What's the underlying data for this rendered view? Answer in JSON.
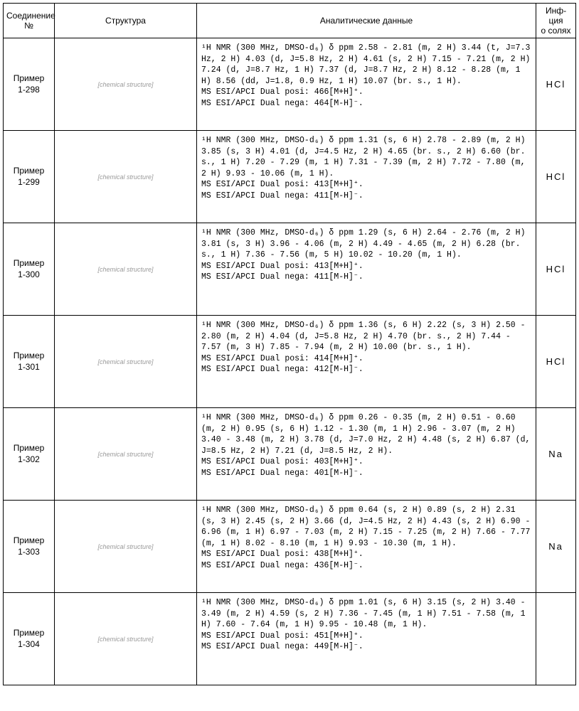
{
  "columns": {
    "compound": "Соединение\n№",
    "structure": "Структура",
    "analytical": "Аналитические данные",
    "salt": "Инф-ция\nо солях"
  },
  "rows": [
    {
      "compound": "Пример\n1-298",
      "structure_placeholder": "[chemical structure]",
      "analytical": "¹H NMR (300 MHz, DMSO-d₆) δ ppm 2.58 - 2.81 (m, 2 H) 3.44 (t, J=7.3 Hz, 2 H) 4.03 (d, J=5.8 Hz, 2 H) 4.61 (s, 2 H) 7.15 - 7.21 (m, 2 H) 7.24 (d, J=8.7 Hz, 1 H) 7.37 (d, J=8.7 Hz, 2 H) 8.12 - 8.28 (m, 1 H) 8.56 (dd, J=1.8, 0.9 Hz, 1 H) 10.07 (br. s., 1 H).\nMS ESI/APCI Dual posi: 466[M+H]⁺.\nMS ESI/APCI Dual nega: 464[M-H]⁻.",
      "salt": "HCl"
    },
    {
      "compound": "Пример\n1-299",
      "structure_placeholder": "[chemical structure]",
      "analytical": "¹H NMR (300 MHz, DMSO-d₆) δ ppm 1.31 (s, 6 H) 2.78 - 2.89 (m, 2 H) 3.85 (s, 3 H) 4.01 (d, J=4.5 Hz, 2 H) 4.65 (br. s., 2 H) 6.60 (br. s., 1 H) 7.20 - 7.29 (m, 1 H) 7.31 - 7.39 (m, 2 H) 7.72 - 7.80 (m, 2 H) 9.93 - 10.06 (m, 1 H).\nMS ESI/APCI Dual posi: 413[M+H]⁺.\nMS ESI/APCI Dual nega: 411[M-H]⁻.",
      "salt": "HCl"
    },
    {
      "compound": "Пример\n1-300",
      "structure_placeholder": "[chemical structure]",
      "analytical": "¹H NMR (300 MHz, DMSO-d₆) δ ppm 1.29 (s, 6 H) 2.64 - 2.76 (m, 2 H) 3.81 (s, 3 H) 3.96 - 4.06 (m, 2 H) 4.49 - 4.65 (m, 2 H) 6.28 (br. s., 1 H) 7.36 - 7.56 (m, 5 H) 10.02 - 10.20 (m, 1 H).\nMS ESI/APCI Dual posi: 413[M+H]⁺.\nMS ESI/APCI Dual nega: 411[M-H]⁻.",
      "salt": "HCl"
    },
    {
      "compound": "Пример\n1-301",
      "structure_placeholder": "[chemical structure]",
      "analytical": "¹H NMR (300 MHz, DMSO-d₆) δ ppm 1.36 (s, 6 H) 2.22 (s, 3 H) 2.50 - 2.80 (m, 2 H) 4.04 (d, J=5.8 Hz, 2 H) 4.70 (br. s., 2 H) 7.44 - 7.57 (m, 3 H) 7.85 - 7.94 (m, 2 H) 10.00 (br. s., 1 H).\nMS ESI/APCI Dual posi: 414[M+H]⁺.\nMS ESI/APCI Dual nega: 412[M-H]⁻.",
      "salt": "HCl"
    },
    {
      "compound": "Пример\n1-302",
      "structure_placeholder": "[chemical structure]",
      "analytical": "¹H NMR (300 MHz, DMSO-d₆) δ ppm 0.26 - 0.35 (m, 2 H) 0.51 - 0.60 (m, 2 H) 0.95 (s, 6 H) 1.12 - 1.30 (m, 1 H) 2.96 - 3.07 (m, 2 H) 3.40 - 3.48 (m, 2 H) 3.78 (d, J=7.0 Hz, 2 H) 4.48 (s, 2 H) 6.87 (d, J=8.5 Hz, 2 H) 7.21 (d, J=8.5 Hz, 2 H).\nMS ESI/APCI Dual posi: 403[M+H]⁺.\nMS ESI/APCI Dual nega: 401[M-H]⁻.",
      "salt": "Na"
    },
    {
      "compound": "Пример\n1-303",
      "structure_placeholder": "[chemical structure]",
      "analytical": "¹H NMR (300 MHz, DMSO-d₆) δ ppm 0.64 (s, 2 H) 0.89 (s, 2 H) 2.31 (s, 3 H) 2.45 (s, 2 H) 3.66 (d, J=4.5 Hz, 2 H) 4.43 (s, 2 H) 6.90 - 6.96 (m, 1 H) 6.97 - 7.03 (m, 2 H) 7.15 - 7.25 (m, 2 H) 7.66 - 7.77 (m, 1 H) 8.02 - 8.10 (m, 1 H) 9.93 - 10.30 (m, 1 H).\nMS ESI/APCI Dual posi: 438[M+H]⁺.\nMS ESI/APCI Dual nega: 436[M-H]⁻.",
      "salt": "Na"
    },
    {
      "compound": "Пример\n1-304",
      "structure_placeholder": "[chemical structure]",
      "analytical": "¹H NMR (300 MHz, DMSO-d₆) δ ppm 1.01 (s, 6 H) 3.15 (s, 2 H) 3.40 - 3.49 (m, 2 H) 4.59 (s, 2 H) 7.36 - 7.45 (m, 1 H) 7.51 - 7.58 (m, 1 H) 7.60 - 7.64 (m, 1 H) 9.95 - 10.48 (m, 1 H).\nMS ESI/APCI Dual posi: 451[M+H]⁺.\nMS ESI/APCI Dual nega: 449[M-H]⁻.",
      "salt": ""
    }
  ]
}
